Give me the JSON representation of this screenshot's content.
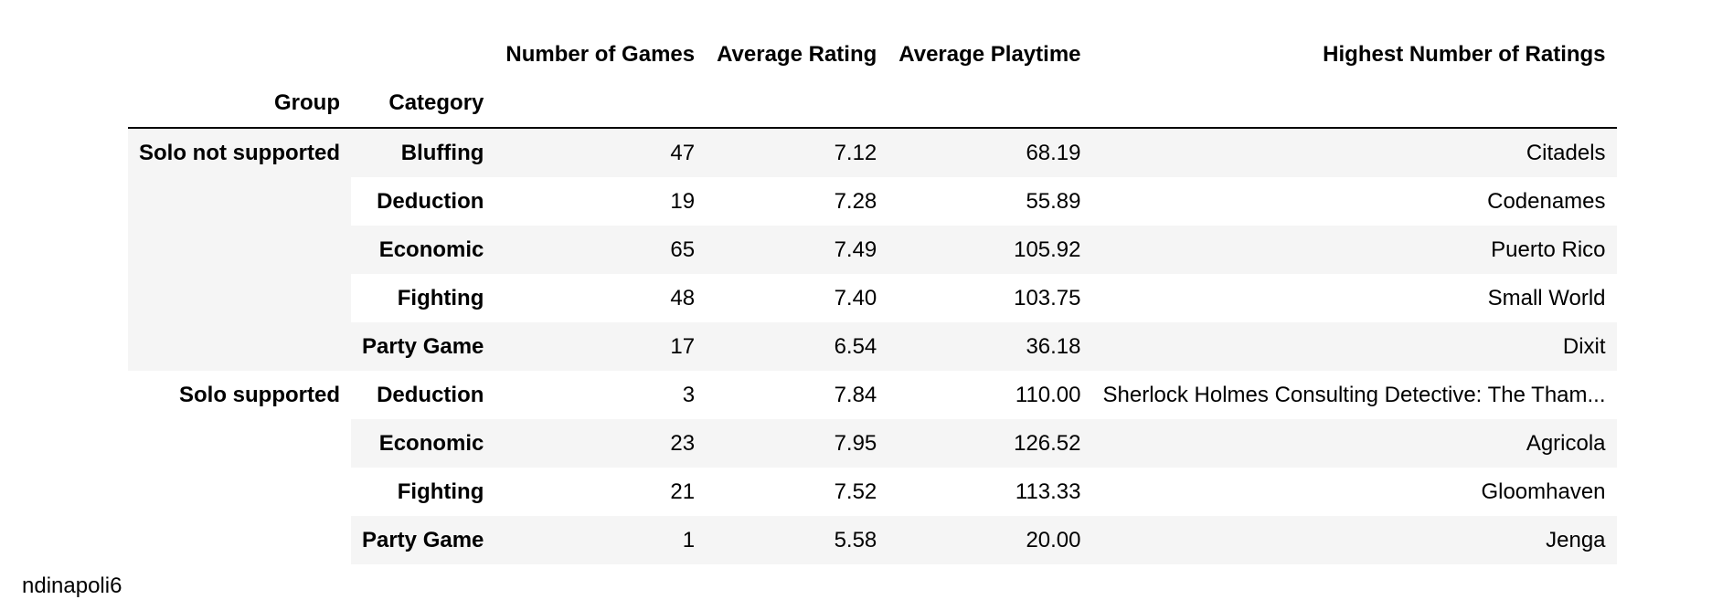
{
  "table": {
    "columns": [
      "Number of Games",
      "Average Rating",
      "Average Playtime",
      "Highest Number of Ratings"
    ],
    "index_names": [
      "Group",
      "Category"
    ],
    "groups": [
      {
        "group": "Solo not supported",
        "rows": [
          {
            "category": "Bluffing",
            "number_of_games": "47",
            "average_rating": "7.12",
            "average_playtime": "68.19",
            "highest_number_of_ratings": "Citadels"
          },
          {
            "category": "Deduction",
            "number_of_games": "19",
            "average_rating": "7.28",
            "average_playtime": "55.89",
            "highest_number_of_ratings": "Codenames"
          },
          {
            "category": "Economic",
            "number_of_games": "65",
            "average_rating": "7.49",
            "average_playtime": "105.92",
            "highest_number_of_ratings": "Puerto Rico"
          },
          {
            "category": "Fighting",
            "number_of_games": "48",
            "average_rating": "7.40",
            "average_playtime": "103.75",
            "highest_number_of_ratings": "Small World"
          },
          {
            "category": "Party Game",
            "number_of_games": "17",
            "average_rating": "6.54",
            "average_playtime": "36.18",
            "highest_number_of_ratings": "Dixit"
          }
        ]
      },
      {
        "group": "Solo supported",
        "rows": [
          {
            "category": "Deduction",
            "number_of_games": "3",
            "average_rating": "7.84",
            "average_playtime": "110.00",
            "highest_number_of_ratings": "Sherlock Holmes Consulting Detective: The Tham..."
          },
          {
            "category": "Economic",
            "number_of_games": "23",
            "average_rating": "7.95",
            "average_playtime": "126.52",
            "highest_number_of_ratings": "Agricola"
          },
          {
            "category": "Fighting",
            "number_of_games": "21",
            "average_rating": "7.52",
            "average_playtime": "113.33",
            "highest_number_of_ratings": "Gloomhaven"
          },
          {
            "category": "Party Game",
            "number_of_games": "1",
            "average_rating": "5.58",
            "average_playtime": "20.00",
            "highest_number_of_ratings": "Jenga"
          }
        ]
      }
    ]
  },
  "watermark": "ndinapoli6"
}
